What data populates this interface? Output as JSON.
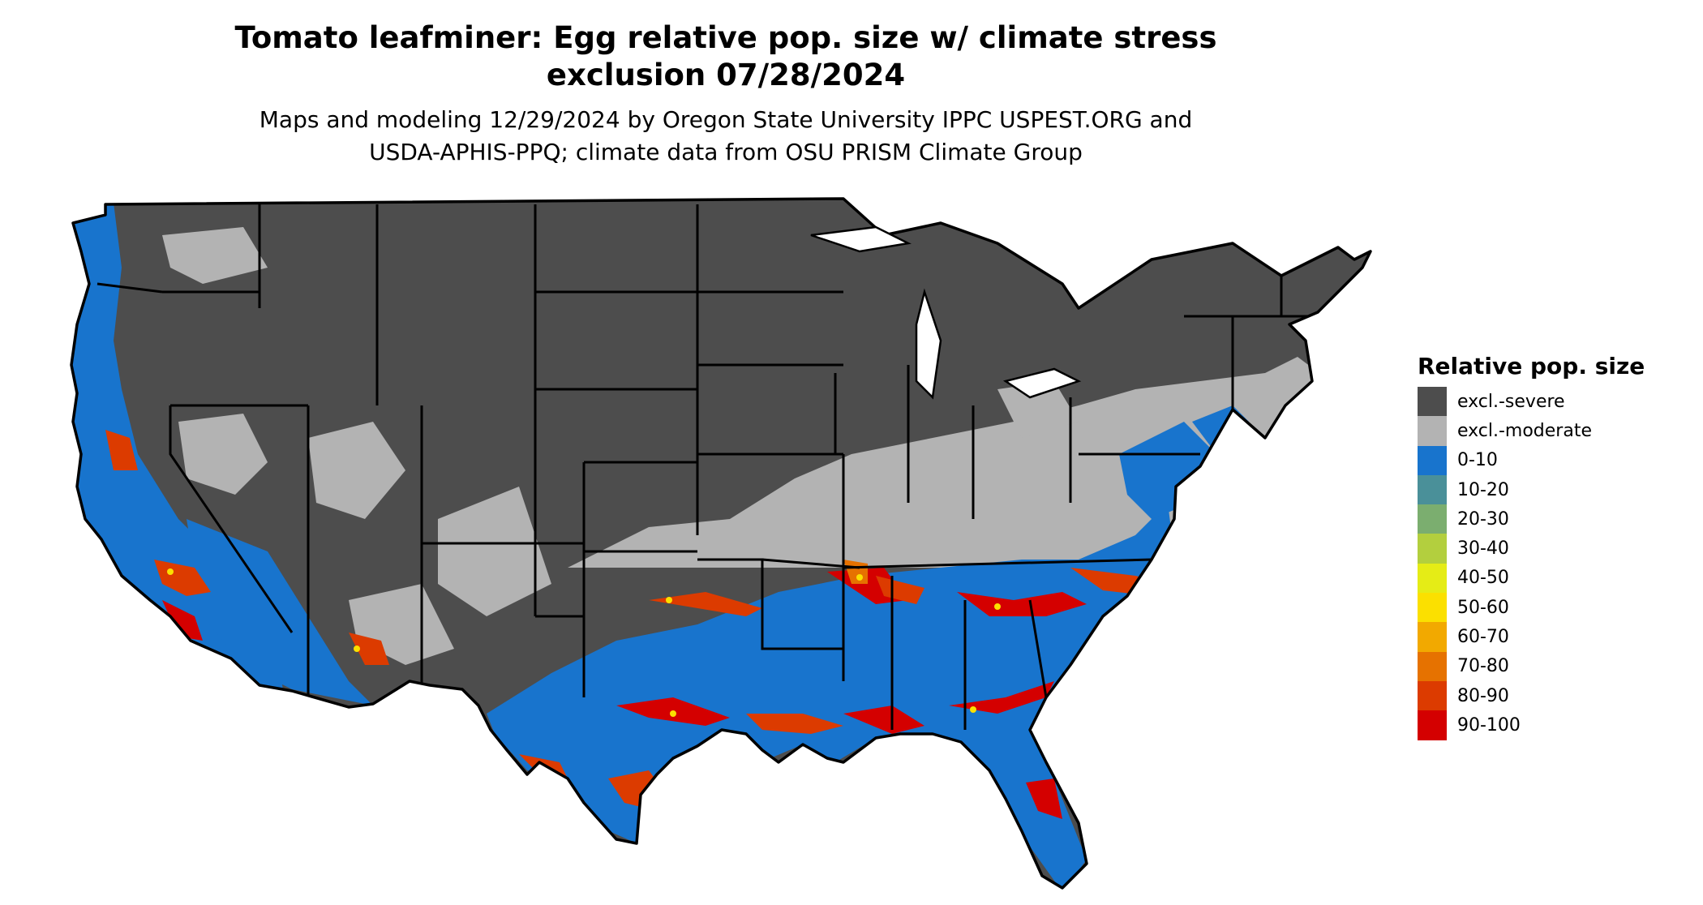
{
  "title": {
    "line1": "Tomato leafminer: Egg relative pop. size w/ climate stress",
    "line2": "exclusion 07/28/2024"
  },
  "subtitle": {
    "line1": "Maps and modeling 12/29/2024 by Oregon State University IPPC USPEST.ORG and",
    "line2": "USDA-APHIS-PPQ; climate data from OSU PRISM Climate Group"
  },
  "legend": {
    "title": "Relative pop. size",
    "items": [
      {
        "label": "excl.-severe",
        "color": "#4d4d4d"
      },
      {
        "label": "excl.-moderate",
        "color": "#b3b3b3"
      },
      {
        "label": "0-10",
        "color": "#1874cd"
      },
      {
        "label": "10-20",
        "color": "#4a9099"
      },
      {
        "label": "20-30",
        "color": "#7bae6f"
      },
      {
        "label": "30-40",
        "color": "#b3cf3e"
      },
      {
        "label": "40-50",
        "color": "#e5ec16"
      },
      {
        "label": "50-60",
        "color": "#fbe000"
      },
      {
        "label": "60-70",
        "color": "#f2a900"
      },
      {
        "label": "70-80",
        "color": "#e67200"
      },
      {
        "label": "80-90",
        "color": "#dc3b00"
      },
      {
        "label": "90-100",
        "color": "#d40000"
      }
    ]
  }
}
